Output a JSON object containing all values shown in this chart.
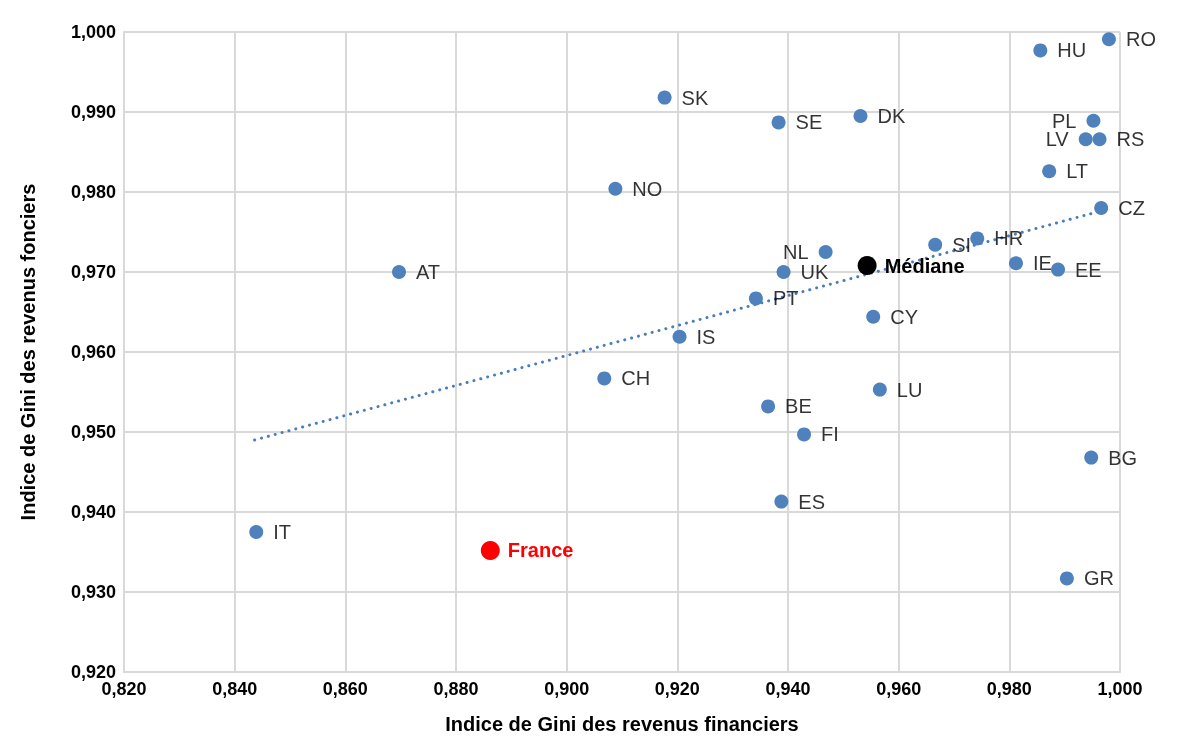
{
  "chart_data": {
    "type": "scatter",
    "xlabel": "Indice de Gini des revenus financiers",
    "ylabel": "Indice de Gini des revenus fonciers",
    "xlim": [
      0.82,
      1.0
    ],
    "xticks": [
      {
        "value": 0.82,
        "label": "0,820"
      },
      {
        "value": 0.84,
        "label": "0,840"
      },
      {
        "value": 0.86,
        "label": "0,860"
      },
      {
        "value": 0.88,
        "label": "0,880"
      },
      {
        "value": 0.9,
        "label": "0,900"
      },
      {
        "value": 0.92,
        "label": "0,920"
      },
      {
        "value": 0.94,
        "label": "0,940"
      },
      {
        "value": 0.96,
        "label": "0,960"
      },
      {
        "value": 0.98,
        "label": "0,980"
      },
      {
        "value": 1.0,
        "label": "1,000"
      }
    ],
    "ylim": [
      0.92,
      1.0
    ],
    "yticks": [
      {
        "value": 0.92,
        "label": "0,920"
      },
      {
        "value": 0.93,
        "label": "0,930"
      },
      {
        "value": 0.94,
        "label": "0,940"
      },
      {
        "value": 0.95,
        "label": "0,950"
      },
      {
        "value": 0.96,
        "label": "0,960"
      },
      {
        "value": 0.97,
        "label": "0,970"
      },
      {
        "value": 0.98,
        "label": "0,980"
      },
      {
        "value": 0.99,
        "label": "0,990"
      },
      {
        "value": 1.0,
        "label": "1,000"
      }
    ],
    "grid": true,
    "legend": false,
    "marker": "circle",
    "series": [
      {
        "type": "line",
        "color": "#4a7ebb",
        "line_style": "dotted",
        "marker": "none",
        "x": [
          0.8436,
          0.9964
        ],
        "values": [
          0.949,
          0.9776
        ]
      },
      {
        "color": "#4f81bd",
        "x": [
          0.8439,
          0.8697,
          0.9068,
          0.9088,
          0.9177,
          0.9204,
          0.9342,
          0.9392,
          0.9383,
          0.9364,
          0.9388,
          0.9429,
          0.9468,
          0.9531,
          0.9554,
          0.9566,
          0.9666,
          0.9742,
          0.9812,
          0.9888,
          0.9872,
          0.9856,
          0.998,
          0.9952,
          0.9938,
          0.9963,
          0.9966,
          0.9948,
          0.9904
        ],
        "values": [
          0.9375,
          0.97,
          0.9567,
          0.9804,
          0.9918,
          0.9619,
          0.9667,
          0.97,
          0.9887,
          0.9532,
          0.9413,
          0.9497,
          0.9725,
          0.9895,
          0.9644,
          0.9553,
          0.9734,
          0.9742,
          0.9711,
          0.9703,
          0.9826,
          0.9977,
          0.9991,
          0.9889,
          0.9866,
          0.9866,
          0.978,
          0.9468,
          0.9317
        ]
      },
      {
        "name": "France",
        "color": "#ff0000",
        "x": [
          0.8862
        ],
        "values": [
          0.9352
        ]
      },
      {
        "name": "Médiane",
        "color": "#000000",
        "x": [
          0.9543
        ],
        "values": [
          0.9708
        ]
      }
    ],
    "annotations": [
      {
        "text": "IT",
        "x": 0.8439,
        "y": 0.9375
      },
      {
        "text": "AT",
        "x": 0.8697,
        "y": 0.97
      },
      {
        "text": "CH",
        "x": 0.9068,
        "y": 0.9567
      },
      {
        "text": "NO",
        "x": 0.9088,
        "y": 0.9804
      },
      {
        "text": "SK",
        "x": 0.9177,
        "y": 0.9918
      },
      {
        "text": "IS",
        "x": 0.9204,
        "y": 0.9619
      },
      {
        "text": "PT",
        "x": 0.9342,
        "y": 0.9667
      },
      {
        "text": "UK",
        "x": 0.9392,
        "y": 0.97
      },
      {
        "text": "SE",
        "x": 0.9383,
        "y": 0.9887
      },
      {
        "text": "BE",
        "x": 0.9364,
        "y": 0.9532
      },
      {
        "text": "ES",
        "x": 0.9388,
        "y": 0.9413
      },
      {
        "text": "FI",
        "x": 0.9429,
        "y": 0.9497
      },
      {
        "text": "NL",
        "x": 0.9468,
        "y": 0.9725
      },
      {
        "text": "DK",
        "x": 0.9531,
        "y": 0.9895
      },
      {
        "text": "CY",
        "x": 0.9554,
        "y": 0.9644
      },
      {
        "text": "LU",
        "x": 0.9566,
        "y": 0.9553
      },
      {
        "text": "SI",
        "x": 0.9666,
        "y": 0.9734
      },
      {
        "text": "HR",
        "x": 0.9742,
        "y": 0.9742
      },
      {
        "text": "IE",
        "x": 0.9812,
        "y": 0.9711
      },
      {
        "text": "EE",
        "x": 0.9888,
        "y": 0.9703
      },
      {
        "text": "LT",
        "x": 0.9872,
        "y": 0.9826
      },
      {
        "text": "HU",
        "x": 0.9856,
        "y": 0.9977
      },
      {
        "text": "RO",
        "x": 0.998,
        "y": 0.9991
      },
      {
        "text": "PL",
        "x": 0.9952,
        "y": 0.9889
      },
      {
        "text": "LV",
        "x": 0.9938,
        "y": 0.9866
      },
      {
        "text": "RS",
        "x": 0.9963,
        "y": 0.9866
      },
      {
        "text": "CZ",
        "x": 0.9966,
        "y": 0.978
      },
      {
        "text": "BG",
        "x": 0.9948,
        "y": 0.9468
      },
      {
        "text": "GR",
        "x": 0.9904,
        "y": 0.9317
      }
    ]
  }
}
